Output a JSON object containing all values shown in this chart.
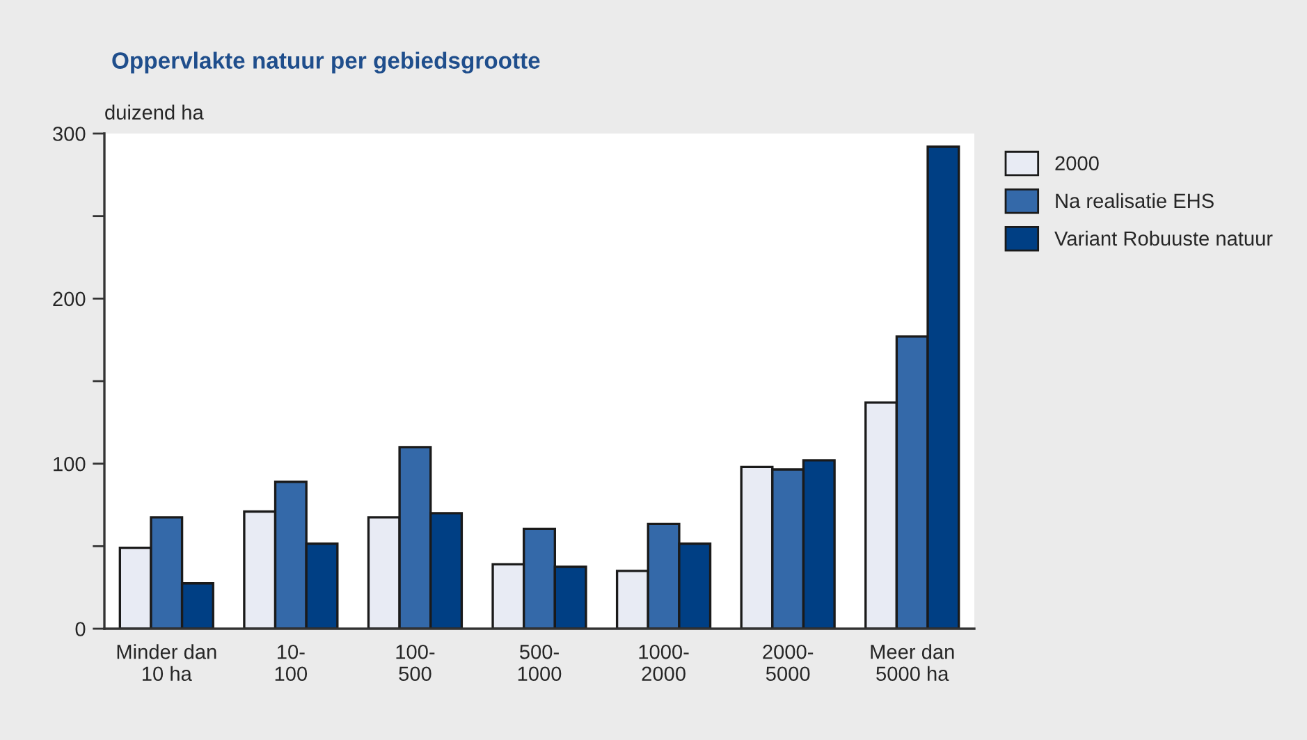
{
  "chart_data": {
    "type": "bar",
    "title": "Oppervlakte natuur per gebiedsgrootte",
    "ylabel": "duizend ha",
    "categories": [
      "Minder dan\n10 ha",
      "10-\n100",
      "100-\n500",
      "500-\n1000",
      "1000-\n2000",
      "2000-\n5000",
      "Meer dan\n5000 ha"
    ],
    "series": [
      {
        "name": "2000",
        "color": "#e8ebf4",
        "values": [
          49,
          71,
          67.5,
          39,
          35,
          98,
          137
        ]
      },
      {
        "name": "Na realisatie EHS",
        "color": "#3469a9",
        "values": [
          67.5,
          89,
          110,
          60.5,
          63.5,
          96.5,
          177
        ]
      },
      {
        "name": "Variant Robuuste natuur",
        "color": "#003f84",
        "values": [
          27.5,
          51.5,
          70,
          37.5,
          51.5,
          102,
          292
        ]
      }
    ],
    "ylim": [
      0,
      300
    ],
    "yticks": [
      0,
      {
        "value": 50,
        "label": null
      },
      100,
      {
        "value": 150,
        "label": null
      },
      200,
      {
        "value": 250,
        "label": null
      },
      300
    ],
    "grid": false,
    "legend": "top right"
  }
}
